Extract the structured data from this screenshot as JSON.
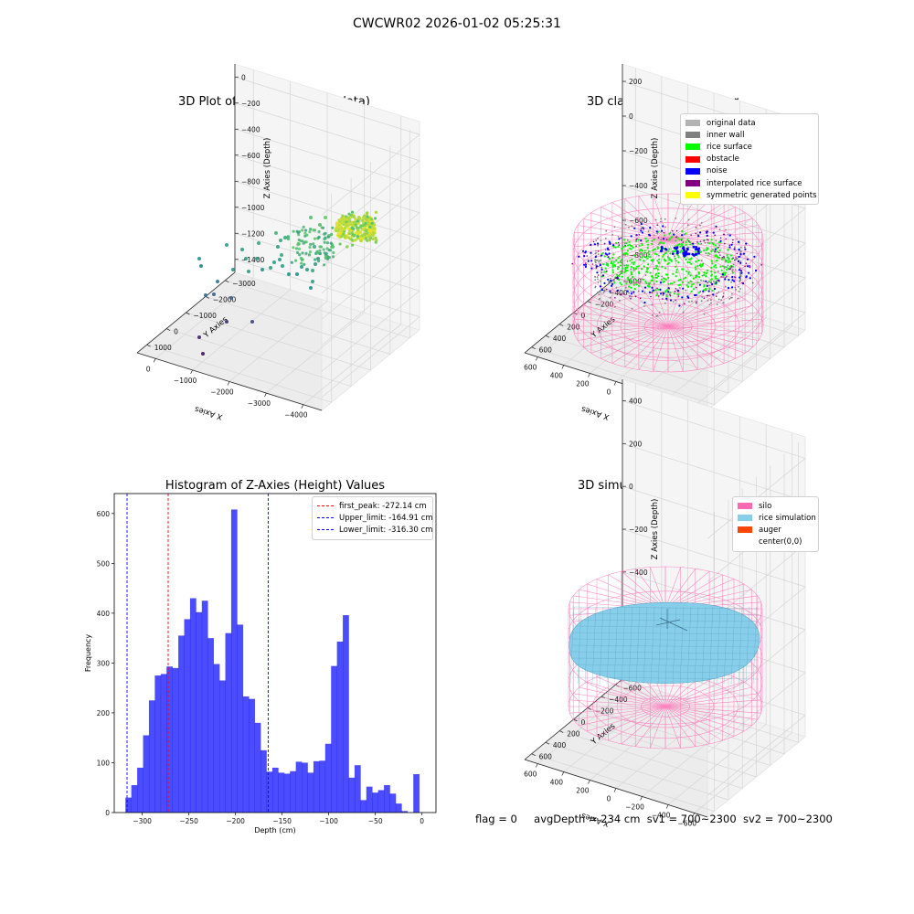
{
  "suptitle": "CWCWR02 2026-01-02 05:25:31",
  "panels": {
    "raw": {
      "title": "3D Plot of Silo Interior(row data)",
      "xlabel": "X Axies",
      "ylabel": "Y Axies",
      "zlabel": "Z Axies (Depth)",
      "xticks": [
        "−4000",
        "−3000",
        "−2000",
        "−1000",
        "0"
      ],
      "yticks": [
        "1000",
        "0",
        "−1000",
        "−2000",
        "−3000"
      ],
      "zticks": [
        "0",
        "−200",
        "−400",
        "−600",
        "−800",
        "−1000",
        "−1200",
        "−1400"
      ]
    },
    "classify": {
      "title": "3D classify of Silo Interior",
      "xlabel": "X Axies",
      "ylabel": "Y Axies",
      "zlabel": "Z Axies (Depth)",
      "xticks": [
        "−600",
        "−400",
        "−200",
        "0",
        "200",
        "400",
        "600"
      ],
      "yticks": [
        "600",
        "400",
        "200",
        "0",
        "−200",
        "−400",
        "−600"
      ],
      "zticks": [
        "200",
        "0",
        "−200",
        "−400",
        "−600",
        "−800"
      ],
      "legend": [
        {
          "label": "original data",
          "color": "#b3b3b3"
        },
        {
          "label": "inner wall",
          "color": "#808080"
        },
        {
          "label": "rice surface",
          "color": "#00ff00"
        },
        {
          "label": "obstacle",
          "color": "#ff0000"
        },
        {
          "label": "noise",
          "color": "#0000ff"
        },
        {
          "label": "interpolated rice surface",
          "color": "#800080"
        },
        {
          "label": "symmetric generated points",
          "color": "#ffff00"
        }
      ]
    },
    "sim": {
      "title": "3D simulation of Silo Interior",
      "xlabel": "X Axies",
      "ylabel": "Y Axies",
      "zlabel": "Z Axies (Depth)",
      "xticks": [
        "−600",
        "−400",
        "−200",
        "0",
        "200",
        "400",
        "600"
      ],
      "yticks": [
        "600",
        "400",
        "200",
        "0",
        "−200",
        "−400",
        "−600"
      ],
      "zticks": [
        "400",
        "200",
        "0",
        "−200",
        "−400",
        "−600",
        "−800"
      ],
      "legend": [
        {
          "label": "silo",
          "color": "#ff69b4"
        },
        {
          "label": "rice simulation",
          "color": "#87ceeb"
        },
        {
          "label": "auger",
          "color": "#ff4500"
        },
        {
          "label": "center(0,0)",
          "color": "#ffffff"
        }
      ]
    }
  },
  "chart_data": [
    {
      "type": "scatter",
      "title": "3D Plot of Silo Interior(row data)",
      "xlabel": "X Axies",
      "ylabel": "Y Axies",
      "zlabel": "Z Axies (Depth)",
      "xlim": [
        -4500,
        500
      ],
      "ylim": [
        -3500,
        1500
      ],
      "zlim": [
        -1450,
        50
      ],
      "colormap": "viridis"
    },
    {
      "type": "scatter",
      "title": "3D classify of Silo Interior",
      "xlabel": "X Axies",
      "ylabel": "Y Axies",
      "zlabel": "Z Axies (Depth)",
      "xlim": [
        -650,
        650
      ],
      "ylim": [
        -650,
        650
      ],
      "zlim": [
        -950,
        250
      ],
      "series": [
        {
          "name": "original data"
        },
        {
          "name": "inner wall"
        },
        {
          "name": "rice surface"
        },
        {
          "name": "obstacle"
        },
        {
          "name": "noise"
        },
        {
          "name": "interpolated rice surface"
        },
        {
          "name": "symmetric generated points"
        }
      ]
    },
    {
      "type": "bar",
      "title": "Histogram of Z-Axies (Height) Values",
      "xlabel": "Depth (cm)",
      "ylabel": "Frequency",
      "xlim": [
        -330,
        15
      ],
      "ylim": [
        0,
        640
      ],
      "xticks": [
        -300,
        -250,
        -200,
        -150,
        -100,
        -50,
        0
      ],
      "yticks": [
        0,
        100,
        200,
        300,
        400,
        500,
        600
      ],
      "bin_start": -318,
      "bin_width": 6.3,
      "values": [
        30,
        55,
        90,
        155,
        225,
        275,
        278,
        293,
        290,
        355,
        388,
        430,
        402,
        425,
        350,
        298,
        265,
        360,
        608,
        377,
        233,
        228,
        180,
        125,
        82,
        90,
        80,
        78,
        83,
        102,
        100,
        80,
        103,
        104,
        138,
        294,
        343,
        396,
        70,
        95,
        25,
        52,
        40,
        45,
        55,
        38,
        18,
        3,
        0,
        77
      ],
      "color": "#0000ff",
      "vlines": [
        {
          "label": "first_peak: -272.14 cm",
          "x": -272.14,
          "color": "#ff0000"
        },
        {
          "label": "Upper_limit: -164.91 cm",
          "x": -164.91,
          "color": "#0000ff"
        },
        {
          "label": "Lower_limit: -316.30 cm",
          "x": -316.3,
          "color": "#0000ff"
        }
      ],
      "xtick_labels": [
        "−300",
        "−250",
        "−200",
        "−150",
        "−100",
        "−50",
        "0"
      ],
      "ytick_labels": [
        "0",
        "100",
        "200",
        "300",
        "400",
        "500",
        "600"
      ],
      "legend_position": "upper right"
    },
    {
      "type": "surface",
      "title": "3D simulation of Silo Interior",
      "xlabel": "X Axies",
      "ylabel": "Y Axies",
      "zlabel": "Z Axies (Depth)",
      "xlim": [
        -650,
        650
      ],
      "ylim": [
        -650,
        650
      ],
      "zlim": [
        -950,
        450
      ],
      "series": [
        {
          "name": "silo"
        },
        {
          "name": "rice simulation"
        },
        {
          "name": "auger"
        },
        {
          "name": "center(0,0)"
        }
      ]
    }
  ],
  "footer": {
    "flag": "flag = 0",
    "avg": "avgDepth = 234 cm",
    "sv1": "sv1 = 700~2300",
    "sv2": "sv2 = 700~2300"
  }
}
